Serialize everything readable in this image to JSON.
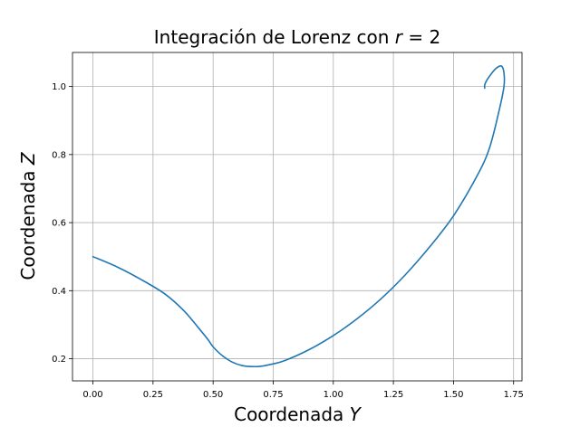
{
  "chart_data": {
    "type": "line",
    "title": "Integración de Lorenz con ",
    "title_math_var": "r",
    "title_math_rest": " = 2",
    "xlabel": "Coordenada ",
    "xlabel_math": "Y",
    "ylabel": "Coordenada ",
    "ylabel_math": "Z",
    "xlim": [
      -0.085,
      1.785
    ],
    "ylim": [
      0.135,
      1.1
    ],
    "xticks": [
      0.0,
      0.25,
      0.5,
      0.75,
      1.0,
      1.25,
      1.5,
      1.75
    ],
    "xtick_labels": [
      "0.00",
      "0.25",
      "0.50",
      "0.75",
      "1.00",
      "1.25",
      "1.50",
      "1.75"
    ],
    "yticks": [
      0.2,
      0.4,
      0.6,
      0.8,
      1.0
    ],
    "ytick_labels": [
      "0.2",
      "0.4",
      "0.6",
      "0.8",
      "1.0"
    ],
    "grid": true,
    "line_color": "#1f77b4",
    "series": [
      {
        "x": [
          0.0,
          0.1,
          0.2,
          0.3,
          0.38,
          0.44,
          0.48,
          0.5,
          0.54,
          0.58,
          0.62,
          0.66,
          0.7,
          0.75,
          0.8,
          0.9,
          1.0,
          1.1,
          1.2,
          1.3,
          1.4,
          1.5,
          1.6,
          1.65,
          1.69,
          1.71,
          1.71,
          1.7,
          1.68,
          1.66,
          1.64,
          1.63,
          1.63
        ],
        "y": [
          0.5,
          0.47,
          0.433,
          0.39,
          0.34,
          0.29,
          0.255,
          0.235,
          0.208,
          0.19,
          0.18,
          0.177,
          0.178,
          0.185,
          0.195,
          0.227,
          0.268,
          0.318,
          0.377,
          0.447,
          0.528,
          0.62,
          0.74,
          0.82,
          0.93,
          1.0,
          1.04,
          1.06,
          1.055,
          1.04,
          1.02,
          1.005,
          0.995
        ]
      }
    ]
  }
}
